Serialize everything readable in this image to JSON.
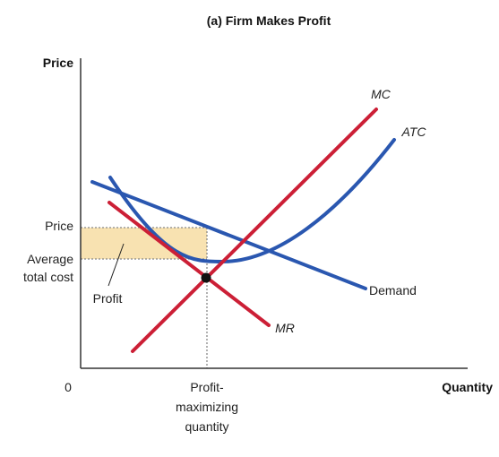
{
  "title": "(a) Firm Makes Profit",
  "axes": {
    "y_label": "Price",
    "x_label": "Quantity",
    "origin_label": "0"
  },
  "y_ticks": {
    "price": "Price",
    "avg_cost_line1": "Average",
    "avg_cost_line2": "total cost"
  },
  "x_tick": {
    "line1": "Profit-",
    "line2": "maximizing",
    "line3": "quantity"
  },
  "curves": {
    "mc": "MC",
    "atc": "ATC",
    "demand": "Demand",
    "mr": "MR"
  },
  "profit_label": "Profit",
  "colors": {
    "mc": "#cc1f36",
    "mr": "#cc1f36",
    "atc": "#2a57b0",
    "demand": "#2a57b0",
    "profit_fill": "#f8e2b1",
    "point": "#111111",
    "axis": "#333333",
    "guide": "#888888"
  }
}
